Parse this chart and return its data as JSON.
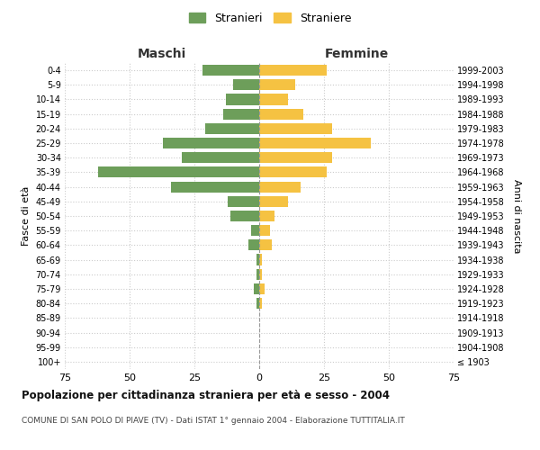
{
  "age_groups": [
    "100+",
    "95-99",
    "90-94",
    "85-89",
    "80-84",
    "75-79",
    "70-74",
    "65-69",
    "60-64",
    "55-59",
    "50-54",
    "45-49",
    "40-44",
    "35-39",
    "30-34",
    "25-29",
    "20-24",
    "15-19",
    "10-14",
    "5-9",
    "0-4"
  ],
  "birth_years": [
    "≤ 1903",
    "1904-1908",
    "1909-1913",
    "1914-1918",
    "1919-1923",
    "1924-1928",
    "1929-1933",
    "1934-1938",
    "1939-1943",
    "1944-1948",
    "1949-1953",
    "1954-1958",
    "1959-1963",
    "1964-1968",
    "1969-1973",
    "1974-1978",
    "1979-1983",
    "1984-1988",
    "1989-1993",
    "1994-1998",
    "1999-2003"
  ],
  "males": [
    0,
    0,
    0,
    0,
    1,
    2,
    1,
    1,
    4,
    3,
    11,
    12,
    34,
    62,
    30,
    37,
    21,
    14,
    13,
    10,
    22
  ],
  "females": [
    0,
    0,
    0,
    0,
    1,
    2,
    1,
    1,
    5,
    4,
    6,
    11,
    16,
    26,
    28,
    43,
    28,
    17,
    11,
    14,
    26
  ],
  "male_color": "#6d9e5a",
  "female_color": "#f5c242",
  "male_label": "Stranieri",
  "female_label": "Straniere",
  "title": "Popolazione per cittadinanza straniera per età e sesso - 2004",
  "subtitle": "COMUNE DI SAN POLO DI PIAVE (TV) - Dati ISTAT 1° gennaio 2004 - Elaborazione TUTTITALIA.IT",
  "xlabel_left": "Maschi",
  "xlabel_right": "Femmine",
  "ylabel_left": "Fasce di età",
  "ylabel_right": "Anni di nascita",
  "xlim": 75,
  "background_color": "#ffffff",
  "grid_color": "#cccccc"
}
